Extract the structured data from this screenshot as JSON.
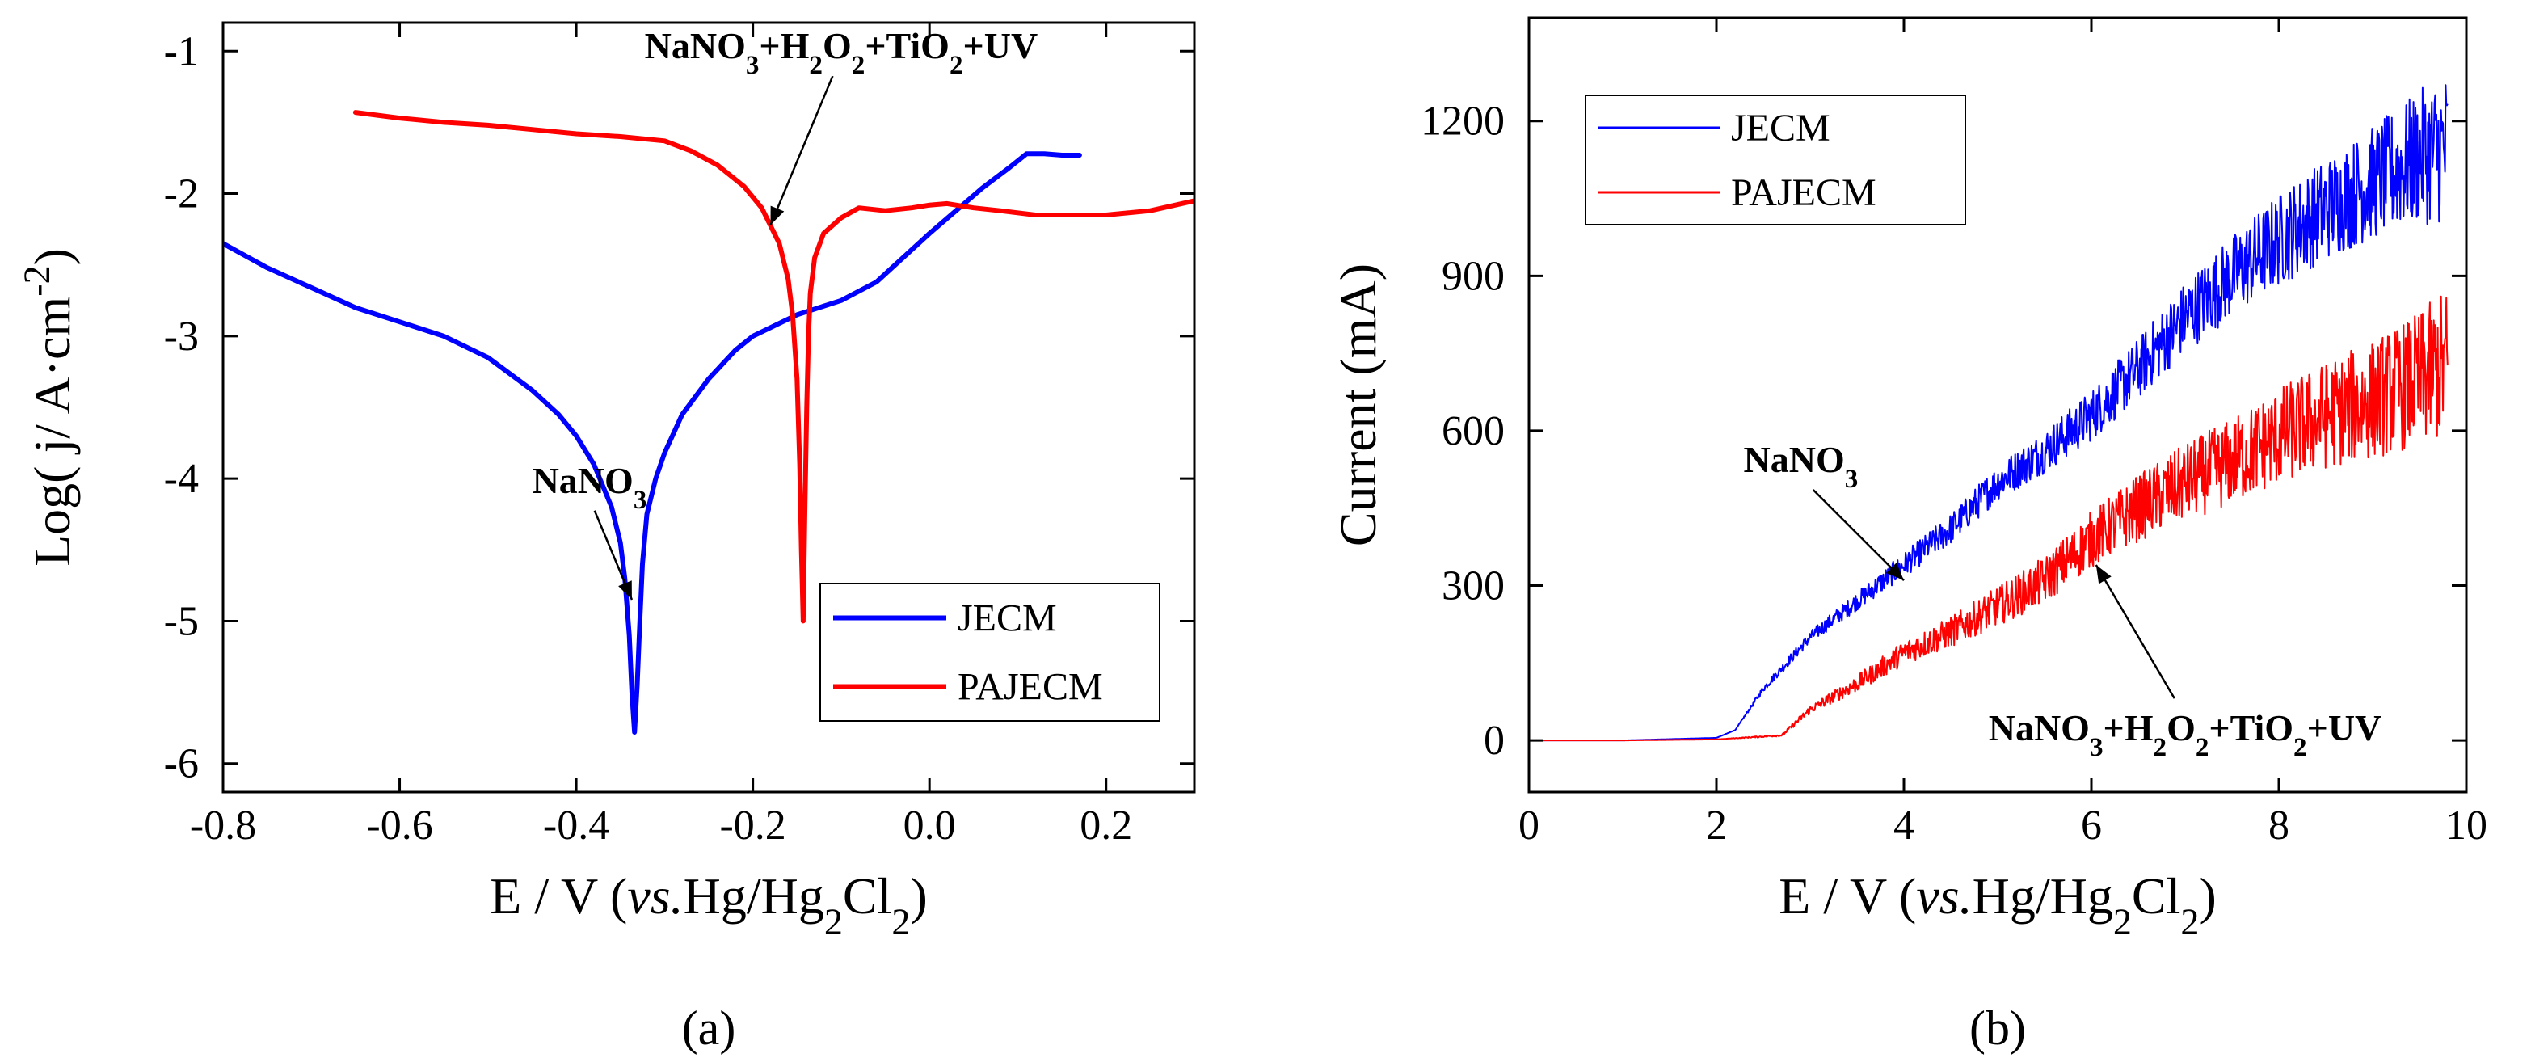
{
  "chart_data": [
    {
      "id": "a",
      "type": "line",
      "caption": "(a)",
      "xlabel": "E / V (vs.Hg/Hg2Cl2)",
      "ylabel": "Log( j/ A·cm-2)",
      "xlim": [
        -0.8,
        0.3
      ],
      "ylim": [
        -6.2,
        -0.8
      ],
      "xticks": [
        -0.8,
        -0.6,
        -0.4,
        -0.2,
        0.0,
        0.2
      ],
      "xtick_labels": [
        "-0.8",
        "-0.6",
        "-0.4",
        "-0.2",
        "0.0",
        "0.2"
      ],
      "yticks": [
        -1,
        -2,
        -3,
        -4,
        -5,
        -6
      ],
      "ytick_labels": [
        "-1",
        "-2",
        "-3",
        "-4",
        "-5",
        "-6"
      ],
      "legend_position": "bottom-right",
      "legend": [
        "JECM",
        "PAJECM"
      ],
      "series": [
        {
          "name": "JECM",
          "color": "#0000ff",
          "x": [
            -0.8,
            -0.75,
            -0.7,
            -0.65,
            -0.6,
            -0.55,
            -0.5,
            -0.45,
            -0.42,
            -0.4,
            -0.38,
            -0.36,
            -0.35,
            -0.345,
            -0.34,
            -0.337,
            -0.334,
            -0.331,
            -0.328,
            -0.325,
            -0.32,
            -0.31,
            -0.3,
            -0.28,
            -0.25,
            -0.22,
            -0.2,
            -0.15,
            -0.1,
            -0.06,
            -0.03,
            0.0,
            0.03,
            0.06,
            0.09,
            0.11,
            0.13,
            0.15,
            0.17
          ],
          "y": [
            -2.35,
            -2.52,
            -2.66,
            -2.8,
            -2.9,
            -3.0,
            -3.15,
            -3.38,
            -3.55,
            -3.7,
            -3.9,
            -4.2,
            -4.45,
            -4.7,
            -5.1,
            -5.5,
            -5.78,
            -5.45,
            -5.0,
            -4.6,
            -4.25,
            -4.0,
            -3.82,
            -3.55,
            -3.3,
            -3.1,
            -3.0,
            -2.85,
            -2.75,
            -2.62,
            -2.45,
            -2.28,
            -2.12,
            -1.96,
            -1.82,
            -1.72,
            -1.72,
            -1.73,
            -1.73
          ]
        },
        {
          "name": "PAJECM",
          "color": "#ff0000",
          "x": [
            -0.65,
            -0.6,
            -0.55,
            -0.5,
            -0.45,
            -0.4,
            -0.35,
            -0.3,
            -0.27,
            -0.24,
            -0.21,
            -0.19,
            -0.17,
            -0.16,
            -0.155,
            -0.15,
            -0.147,
            -0.145,
            -0.143,
            -0.141,
            -0.139,
            -0.137,
            -0.135,
            -0.13,
            -0.12,
            -0.1,
            -0.08,
            -0.05,
            -0.02,
            0.0,
            0.02,
            0.05,
            0.08,
            0.12,
            0.16,
            0.2,
            0.25,
            0.3
          ],
          "y": [
            -1.43,
            -1.47,
            -1.5,
            -1.52,
            -1.55,
            -1.58,
            -1.6,
            -1.63,
            -1.7,
            -1.8,
            -1.95,
            -2.1,
            -2.35,
            -2.6,
            -2.85,
            -3.3,
            -3.9,
            -4.5,
            -5.0,
            -4.2,
            -3.5,
            -3.0,
            -2.7,
            -2.45,
            -2.28,
            -2.17,
            -2.1,
            -2.12,
            -2.1,
            -2.08,
            -2.07,
            -2.1,
            -2.12,
            -2.15,
            -2.15,
            -2.15,
            -2.12,
            -2.05
          ]
        }
      ],
      "annotations": [
        {
          "label": "NaNO3",
          "x": -0.385,
          "y": -4.1,
          "target_x": -0.337,
          "target_y": -4.85
        },
        {
          "label": "NaNO3+H2O2+TiO2+UV",
          "x": -0.1,
          "y": -1.05,
          "target_x": -0.18,
          "target_y": -2.22
        }
      ]
    },
    {
      "id": "b",
      "type": "line",
      "caption": "(b)",
      "xlabel": "E / V (vs.Hg/Hg2Cl2)",
      "ylabel": "Current (mA)",
      "xlim": [
        0,
        10
      ],
      "ylim": [
        -100,
        1400
      ],
      "xticks": [
        0,
        2,
        4,
        6,
        8,
        10
      ],
      "xtick_labels": [
        "0",
        "2",
        "4",
        "6",
        "8",
        "10"
      ],
      "yticks": [
        0,
        300,
        600,
        900,
        1200
      ],
      "ytick_labels": [
        "0",
        "300",
        "600",
        "900",
        "1200"
      ],
      "legend_position": "top-left",
      "legend": [
        "JECM",
        "PAJECM"
      ],
      "series": [
        {
          "name": "JECM",
          "color": "#0000ff",
          "x": [
            0,
            1.0,
            2.0,
            2.2,
            2.5,
            3.0,
            3.5,
            4.0,
            4.5,
            5.0,
            5.5,
            6.0,
            6.5,
            7.0,
            7.5,
            8.0,
            8.5,
            9.0,
            9.5,
            9.8
          ],
          "y": [
            0,
            0,
            5,
            20,
            100,
            200,
            270,
            340,
            410,
            500,
            560,
            630,
            720,
            820,
            900,
            970,
            1030,
            1080,
            1130,
            1150
          ],
          "noise": [
            0,
            0,
            0,
            0,
            6,
            12,
            18,
            24,
            30,
            36,
            42,
            50,
            60,
            70,
            80,
            90,
            100,
            110,
            130,
            150
          ]
        },
        {
          "name": "PAJECM",
          "color": "#ff0000",
          "x": [
            0,
            1.0,
            2.0,
            2.7,
            3.0,
            3.5,
            4.0,
            4.5,
            5.0,
            5.5,
            6.0,
            6.5,
            7.0,
            7.5,
            8.0,
            8.5,
            9.0,
            9.5,
            9.8
          ],
          "y": [
            0,
            0,
            2,
            10,
            60,
            110,
            170,
            210,
            260,
            310,
            390,
            450,
            500,
            540,
            590,
            630,
            660,
            700,
            730
          ],
          "noise": [
            0,
            0,
            0,
            2,
            8,
            16,
            24,
            30,
            38,
            46,
            55,
            65,
            75,
            85,
            95,
            105,
            115,
            130,
            150
          ]
        }
      ],
      "annotations": [
        {
          "label": "NaNO3",
          "x": 2.9,
          "y": 520,
          "target_x": 4.0,
          "target_y": 310
        },
        {
          "label": "NaNO3+H2O2+TiO2+UV",
          "x": 7.0,
          "y": 0,
          "target_x": 6.05,
          "target_y": 340
        }
      ]
    }
  ]
}
